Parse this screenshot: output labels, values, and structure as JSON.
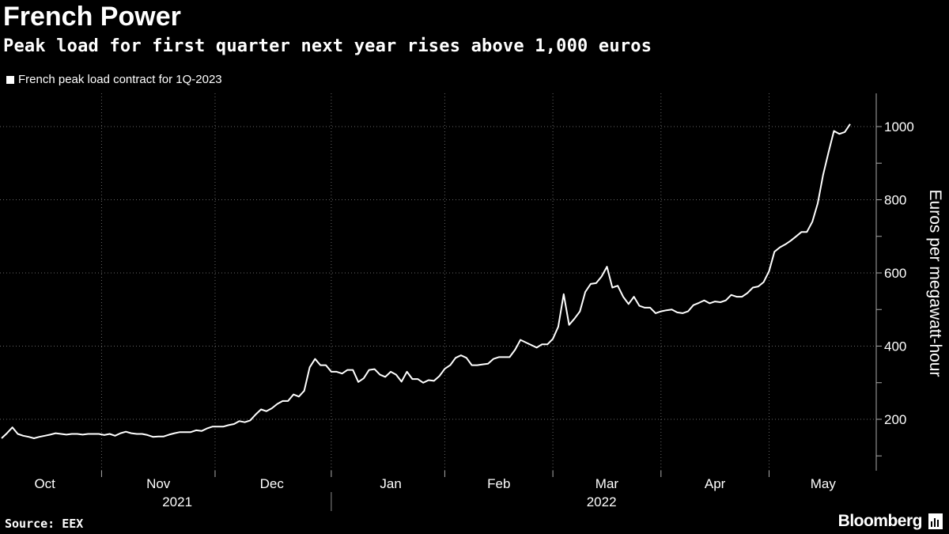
{
  "chart_data": {
    "type": "line",
    "title": "French Power",
    "subtitle": "Peak load for first quarter next year rises above 1,000 euros",
    "series": [
      {
        "name": "French peak load contract for 1Q-2023",
        "color": "#ffffff",
        "values": [
          148,
          162,
          178,
          160,
          155,
          152,
          148,
          152,
          155,
          158,
          162,
          160,
          158,
          160,
          160,
          158,
          160,
          160,
          160,
          157,
          160,
          155,
          162,
          166,
          162,
          160,
          160,
          157,
          152,
          153,
          153,
          158,
          162,
          165,
          165,
          165,
          170,
          168,
          175,
          180,
          180,
          180,
          184,
          187,
          195,
          192,
          197,
          213,
          227,
          222,
          230,
          242,
          250,
          250,
          268,
          262,
          278,
          342,
          365,
          348,
          348,
          330,
          330,
          325,
          335,
          335,
          302,
          312,
          335,
          337,
          322,
          316,
          330,
          322,
          303,
          330,
          310,
          310,
          300,
          307,
          305,
          318,
          338,
          348,
          368,
          375,
          368,
          348,
          348,
          350,
          352,
          365,
          370,
          370,
          370,
          390,
          417,
          410,
          403,
          396,
          405,
          405,
          420,
          453,
          542,
          458,
          475,
          495,
          548,
          570,
          572,
          590,
          617,
          560,
          565,
          535,
          515,
          535,
          510,
          505,
          505,
          490,
          495,
          498,
          500,
          492,
          490,
          495,
          512,
          518,
          525,
          517,
          522,
          520,
          525,
          540,
          535,
          535,
          545,
          560,
          563,
          575,
          605,
          658,
          670,
          678,
          688,
          700,
          712,
          712,
          740,
          790,
          868,
          930,
          988,
          980,
          985,
          1007
        ]
      }
    ],
    "x_tick_labels": [
      "Oct",
      "Nov",
      "Dec",
      "Jan",
      "Feb",
      "Mar",
      "Apr",
      "May"
    ],
    "x_tick_positions": [
      8,
      29,
      50,
      72,
      92,
      112,
      132,
      152
    ],
    "x_group_labels": [
      "2021",
      "2022"
    ],
    "y_ticks": [
      200,
      400,
      600,
      800,
      1000
    ],
    "ylim": [
      80,
      1100
    ],
    "ylabel": "Euros per megawatt-hour",
    "xlabel": "",
    "grid": true,
    "legend_position": "top-left"
  },
  "source": "Source: EEX",
  "brand": "Bloomberg"
}
